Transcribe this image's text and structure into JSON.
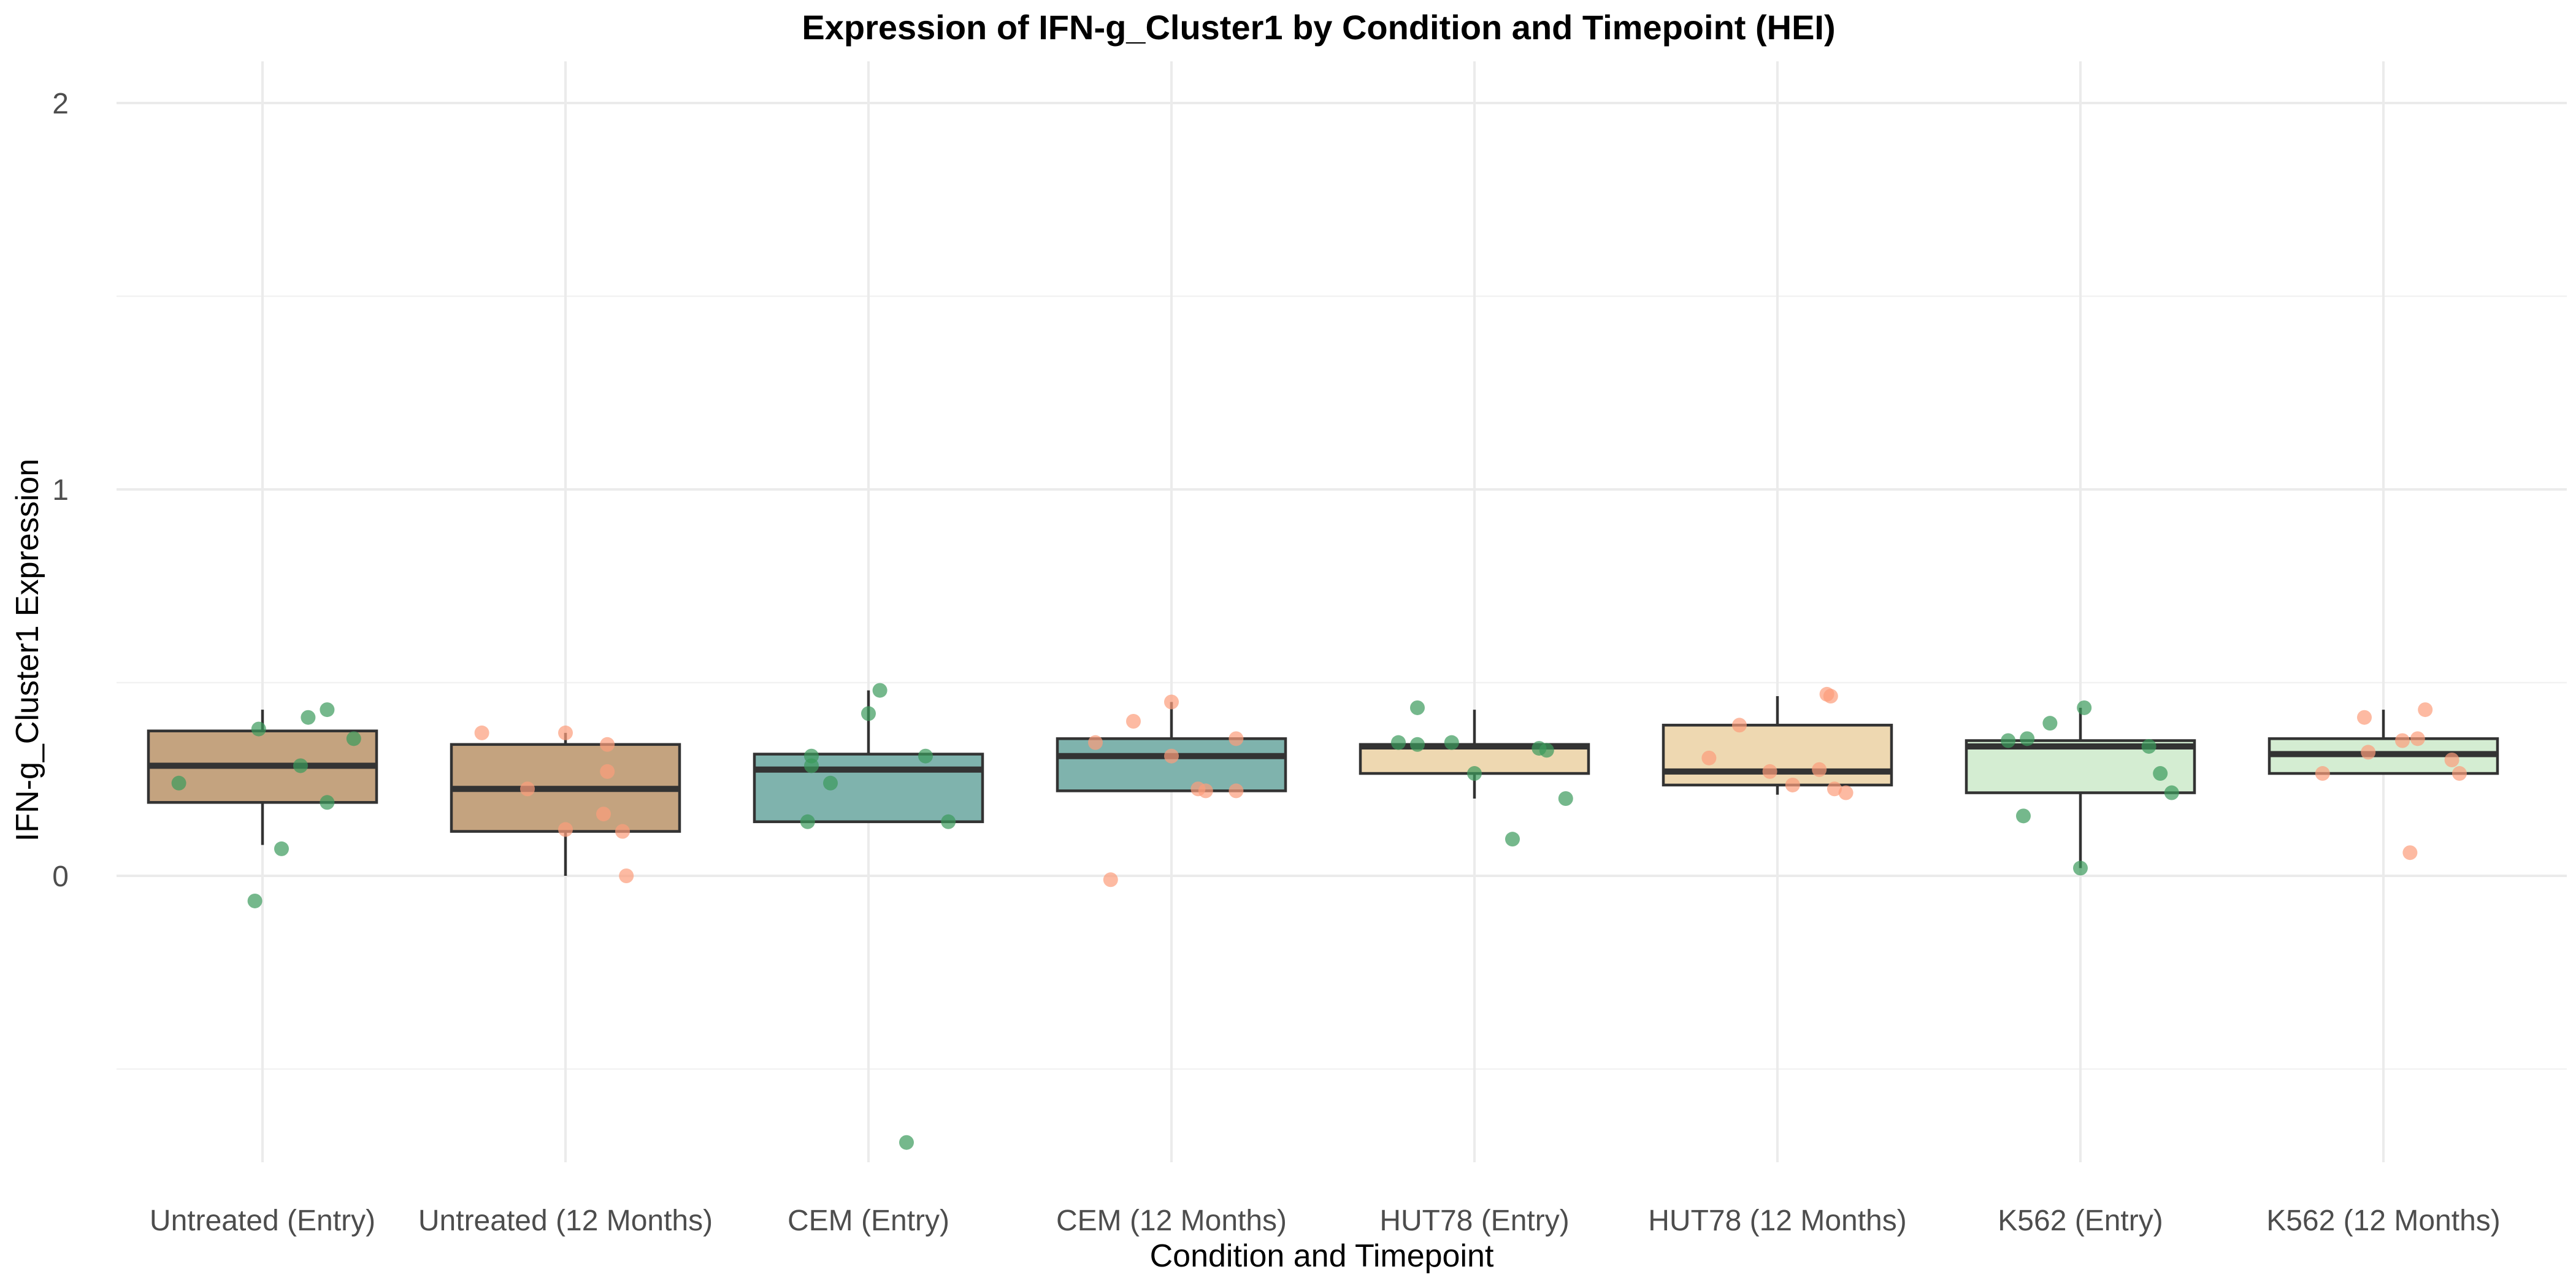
{
  "chart_data": {
    "type": "box",
    "title": "Expression of IFN-g_Cluster1 by Condition and Timepoint (HEI)",
    "xlabel": "Condition and Timepoint",
    "ylabel": "IFN-g_Cluster1 Expression",
    "ylim": [
      -0.75,
      2.1
    ],
    "yticks": [
      0,
      1,
      2
    ],
    "grid": true,
    "legend": "none",
    "categories": [
      "Untreated (Entry)",
      "Untreated (12 Months)",
      "CEM (Entry)",
      "CEM (12 Months)",
      "HUT78 (Entry)",
      "HUT78 (12 Months)",
      "K562 (Entry)",
      "K562 (12 Months)"
    ],
    "fill_colors": [
      "#c4a37f",
      "#c4a37f",
      "#7fb3ad",
      "#7fb3ad",
      "#eed8b1",
      "#eed8b1",
      "#d4edd2",
      "#d4edd2"
    ],
    "point_colors": {
      "Entry": "#3a9a5b",
      "12 Months": "#fc9d7b"
    },
    "boxes": [
      {
        "category": "Untreated (Entry)",
        "whisker_low": 0.08,
        "q1": 0.19,
        "median": 0.285,
        "q3": 0.375,
        "whisker_high": 0.43,
        "points": [
          [
            -0.01,
            0.38
          ],
          [
            0.1,
            0.285
          ],
          [
            -0.22,
            0.24
          ],
          [
            0.12,
            0.41
          ],
          [
            0.17,
            0.43
          ],
          [
            0.24,
            0.355
          ],
          [
            0.17,
            0.19
          ],
          [
            0.05,
            0.07
          ],
          [
            -0.02,
            -0.065
          ]
        ]
      },
      {
        "category": "Untreated (12 Months)",
        "whisker_low": 0.0,
        "q1": 0.115,
        "median": 0.225,
        "q3": 0.34,
        "whisker_high": 0.37,
        "points": [
          [
            -0.22,
            0.37
          ],
          [
            0.0,
            0.37
          ],
          [
            0.11,
            0.34
          ],
          [
            0.11,
            0.27
          ],
          [
            -0.1,
            0.225
          ],
          [
            0.1,
            0.16
          ],
          [
            0.0,
            0.12
          ],
          [
            0.15,
            0.115
          ],
          [
            0.16,
            0.0
          ]
        ]
      },
      {
        "category": "CEM (Entry)",
        "whisker_low": 0.14,
        "q1": 0.14,
        "median": 0.275,
        "q3": 0.315,
        "whisker_high": 0.48,
        "points": [
          [
            0.03,
            0.48
          ],
          [
            0.0,
            0.42
          ],
          [
            -0.15,
            0.31
          ],
          [
            0.15,
            0.31
          ],
          [
            -0.15,
            0.285
          ],
          [
            -0.1,
            0.24
          ],
          [
            -0.16,
            0.14
          ],
          [
            0.21,
            0.14
          ],
          [
            0.1,
            -0.69
          ]
        ]
      },
      {
        "category": "CEM (12 Months)",
        "whisker_low": 0.22,
        "q1": 0.22,
        "median": 0.31,
        "q3": 0.355,
        "whisker_high": 0.45,
        "points": [
          [
            0.0,
            0.45
          ],
          [
            -0.1,
            0.4
          ],
          [
            -0.2,
            0.345
          ],
          [
            0.17,
            0.355
          ],
          [
            0.0,
            0.31
          ],
          [
            0.07,
            0.225
          ],
          [
            0.09,
            0.22
          ],
          [
            0.17,
            0.22
          ],
          [
            -0.16,
            -0.01
          ]
        ]
      },
      {
        "category": "HUT78 (Entry)",
        "whisker_low": 0.2,
        "q1": 0.265,
        "median": 0.335,
        "q3": 0.34,
        "whisker_high": 0.43,
        "points": [
          [
            -0.15,
            0.435
          ],
          [
            -0.2,
            0.345
          ],
          [
            -0.15,
            0.34
          ],
          [
            -0.06,
            0.345
          ],
          [
            0.17,
            0.33
          ],
          [
            0.19,
            0.325
          ],
          [
            0.0,
            0.265
          ],
          [
            0.24,
            0.2
          ],
          [
            0.1,
            0.095
          ]
        ]
      },
      {
        "category": "HUT78 (12 Months)",
        "whisker_low": 0.21,
        "q1": 0.235,
        "median": 0.27,
        "q3": 0.39,
        "whisker_high": 0.465,
        "points": [
          [
            0.13,
            0.47
          ],
          [
            0.14,
            0.465
          ],
          [
            -0.1,
            0.39
          ],
          [
            -0.18,
            0.305
          ],
          [
            -0.02,
            0.27
          ],
          [
            0.11,
            0.275
          ],
          [
            0.15,
            0.225
          ],
          [
            0.04,
            0.235
          ],
          [
            0.18,
            0.215
          ]
        ]
      },
      {
        "category": "K562 (Entry)",
        "whisker_low": 0.02,
        "q1": 0.215,
        "median": 0.335,
        "q3": 0.35,
        "whisker_high": 0.435,
        "points": [
          [
            0.01,
            0.435
          ],
          [
            -0.08,
            0.395
          ],
          [
            -0.14,
            0.355
          ],
          [
            -0.19,
            0.35
          ],
          [
            0.18,
            0.335
          ],
          [
            0.21,
            0.265
          ],
          [
            0.24,
            0.215
          ],
          [
            -0.15,
            0.155
          ],
          [
            0.0,
            0.02
          ]
        ]
      },
      {
        "category": "K562 (12 Months)",
        "whisker_low": 0.265,
        "q1": 0.265,
        "median": 0.315,
        "q3": 0.355,
        "whisker_high": 0.43,
        "points": [
          [
            -0.05,
            0.41
          ],
          [
            0.11,
            0.43
          ],
          [
            0.05,
            0.35
          ],
          [
            0.09,
            0.355
          ],
          [
            -0.04,
            0.32
          ],
          [
            0.18,
            0.3
          ],
          [
            0.2,
            0.265
          ],
          [
            -0.16,
            0.265
          ],
          [
            0.07,
            0.06
          ]
        ]
      }
    ]
  }
}
